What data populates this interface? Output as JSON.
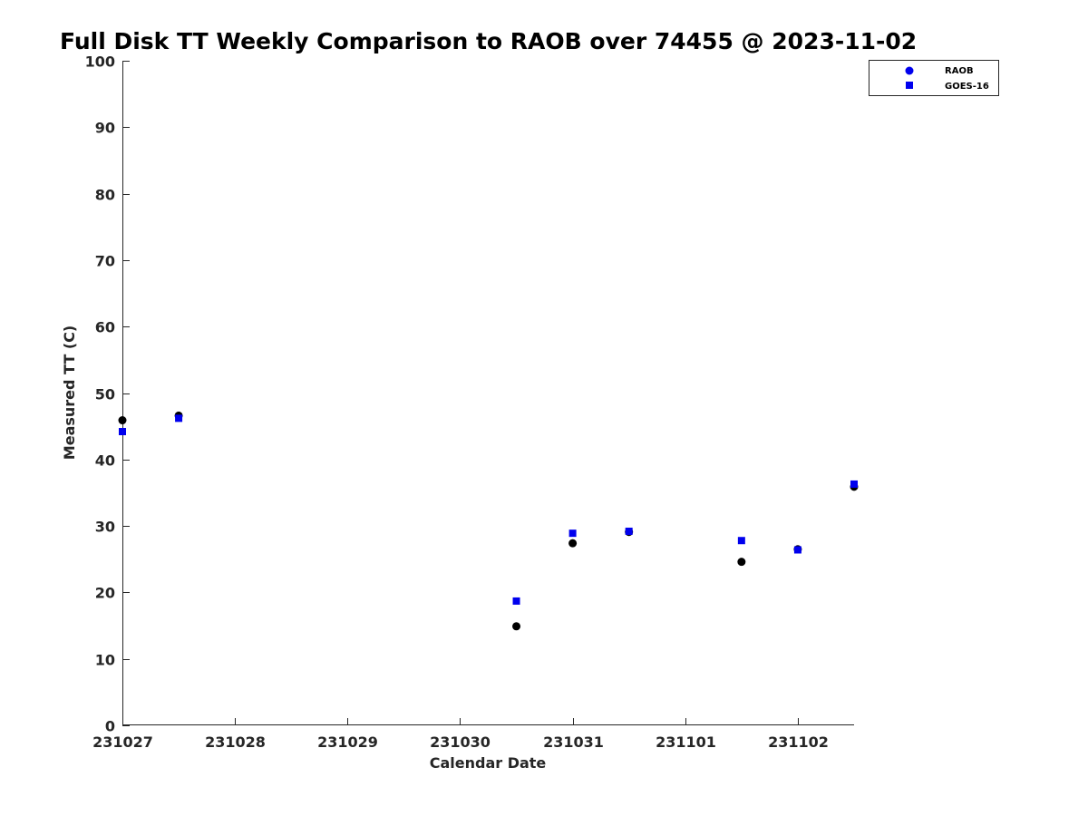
{
  "chart_data": {
    "type": "scatter",
    "title": "Full Disk TT Weekly Comparison to RAOB over 74455 @ 2023-11-02",
    "xlabel": "Calendar Date",
    "ylabel": "Measured TT (C)",
    "xlim": [
      "2023-10-27T00:00",
      "2023-11-02T12:00"
    ],
    "ylim": [
      0,
      100
    ],
    "x_ticks": [
      {
        "date": "2023-10-27",
        "label": "231027"
      },
      {
        "date": "2023-10-28",
        "label": "231028"
      },
      {
        "date": "2023-10-29",
        "label": "231029"
      },
      {
        "date": "2023-10-30",
        "label": "231030"
      },
      {
        "date": "2023-10-31",
        "label": "231031"
      },
      {
        "date": "2023-11-01",
        "label": "231101"
      },
      {
        "date": "2023-11-02",
        "label": "231102"
      }
    ],
    "y_ticks": [
      0,
      10,
      20,
      30,
      40,
      50,
      60,
      70,
      80,
      90,
      100
    ],
    "grid": false,
    "legend_position": "top-right",
    "legend": [
      "RAOB",
      "GOES-16"
    ],
    "series": [
      {
        "name": "RAOB",
        "marker": "circle",
        "color": "#000000",
        "points": [
          {
            "x": "2023-10-27T00:00",
            "y": 45.9
          },
          {
            "x": "2023-10-27T12:00",
            "y": 46.6
          },
          {
            "x": "2023-10-30T12:00",
            "y": 14.9
          },
          {
            "x": "2023-10-31T00:00",
            "y": 27.4
          },
          {
            "x": "2023-10-31T12:00",
            "y": 29.1
          },
          {
            "x": "2023-11-01T12:00",
            "y": 24.6
          },
          {
            "x": "2023-11-02T00:00",
            "y": 26.5
          },
          {
            "x": "2023-11-02T12:00",
            "y": 35.9
          }
        ]
      },
      {
        "name": "GOES-16",
        "marker": "square",
        "color": "#0000ee",
        "points": [
          {
            "x": "2023-10-27T00:00",
            "y": 44.2
          },
          {
            "x": "2023-10-27T12:00",
            "y": 46.2
          },
          {
            "x": "2023-10-30T12:00",
            "y": 18.7
          },
          {
            "x": "2023-10-31T00:00",
            "y": 28.9
          },
          {
            "x": "2023-10-31T12:00",
            "y": 29.2
          },
          {
            "x": "2023-11-01T12:00",
            "y": 27.8
          },
          {
            "x": "2023-11-02T00:00",
            "y": 26.4
          },
          {
            "x": "2023-11-02T12:00",
            "y": 36.3
          }
        ]
      }
    ],
    "legend_marker_color": "#0000ee"
  }
}
